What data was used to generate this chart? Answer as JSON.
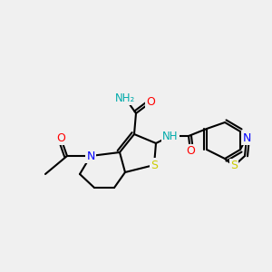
{
  "bg_color": "#f0f0f0",
  "bond_color": "#000000",
  "atom_colors": {
    "N": "#0000ff",
    "O": "#ff0000",
    "S": "#cccc00",
    "H": "#00aaaa",
    "C": "#000000"
  },
  "title": "",
  "figsize": [
    3.0,
    3.0
  ],
  "dpi": 100
}
